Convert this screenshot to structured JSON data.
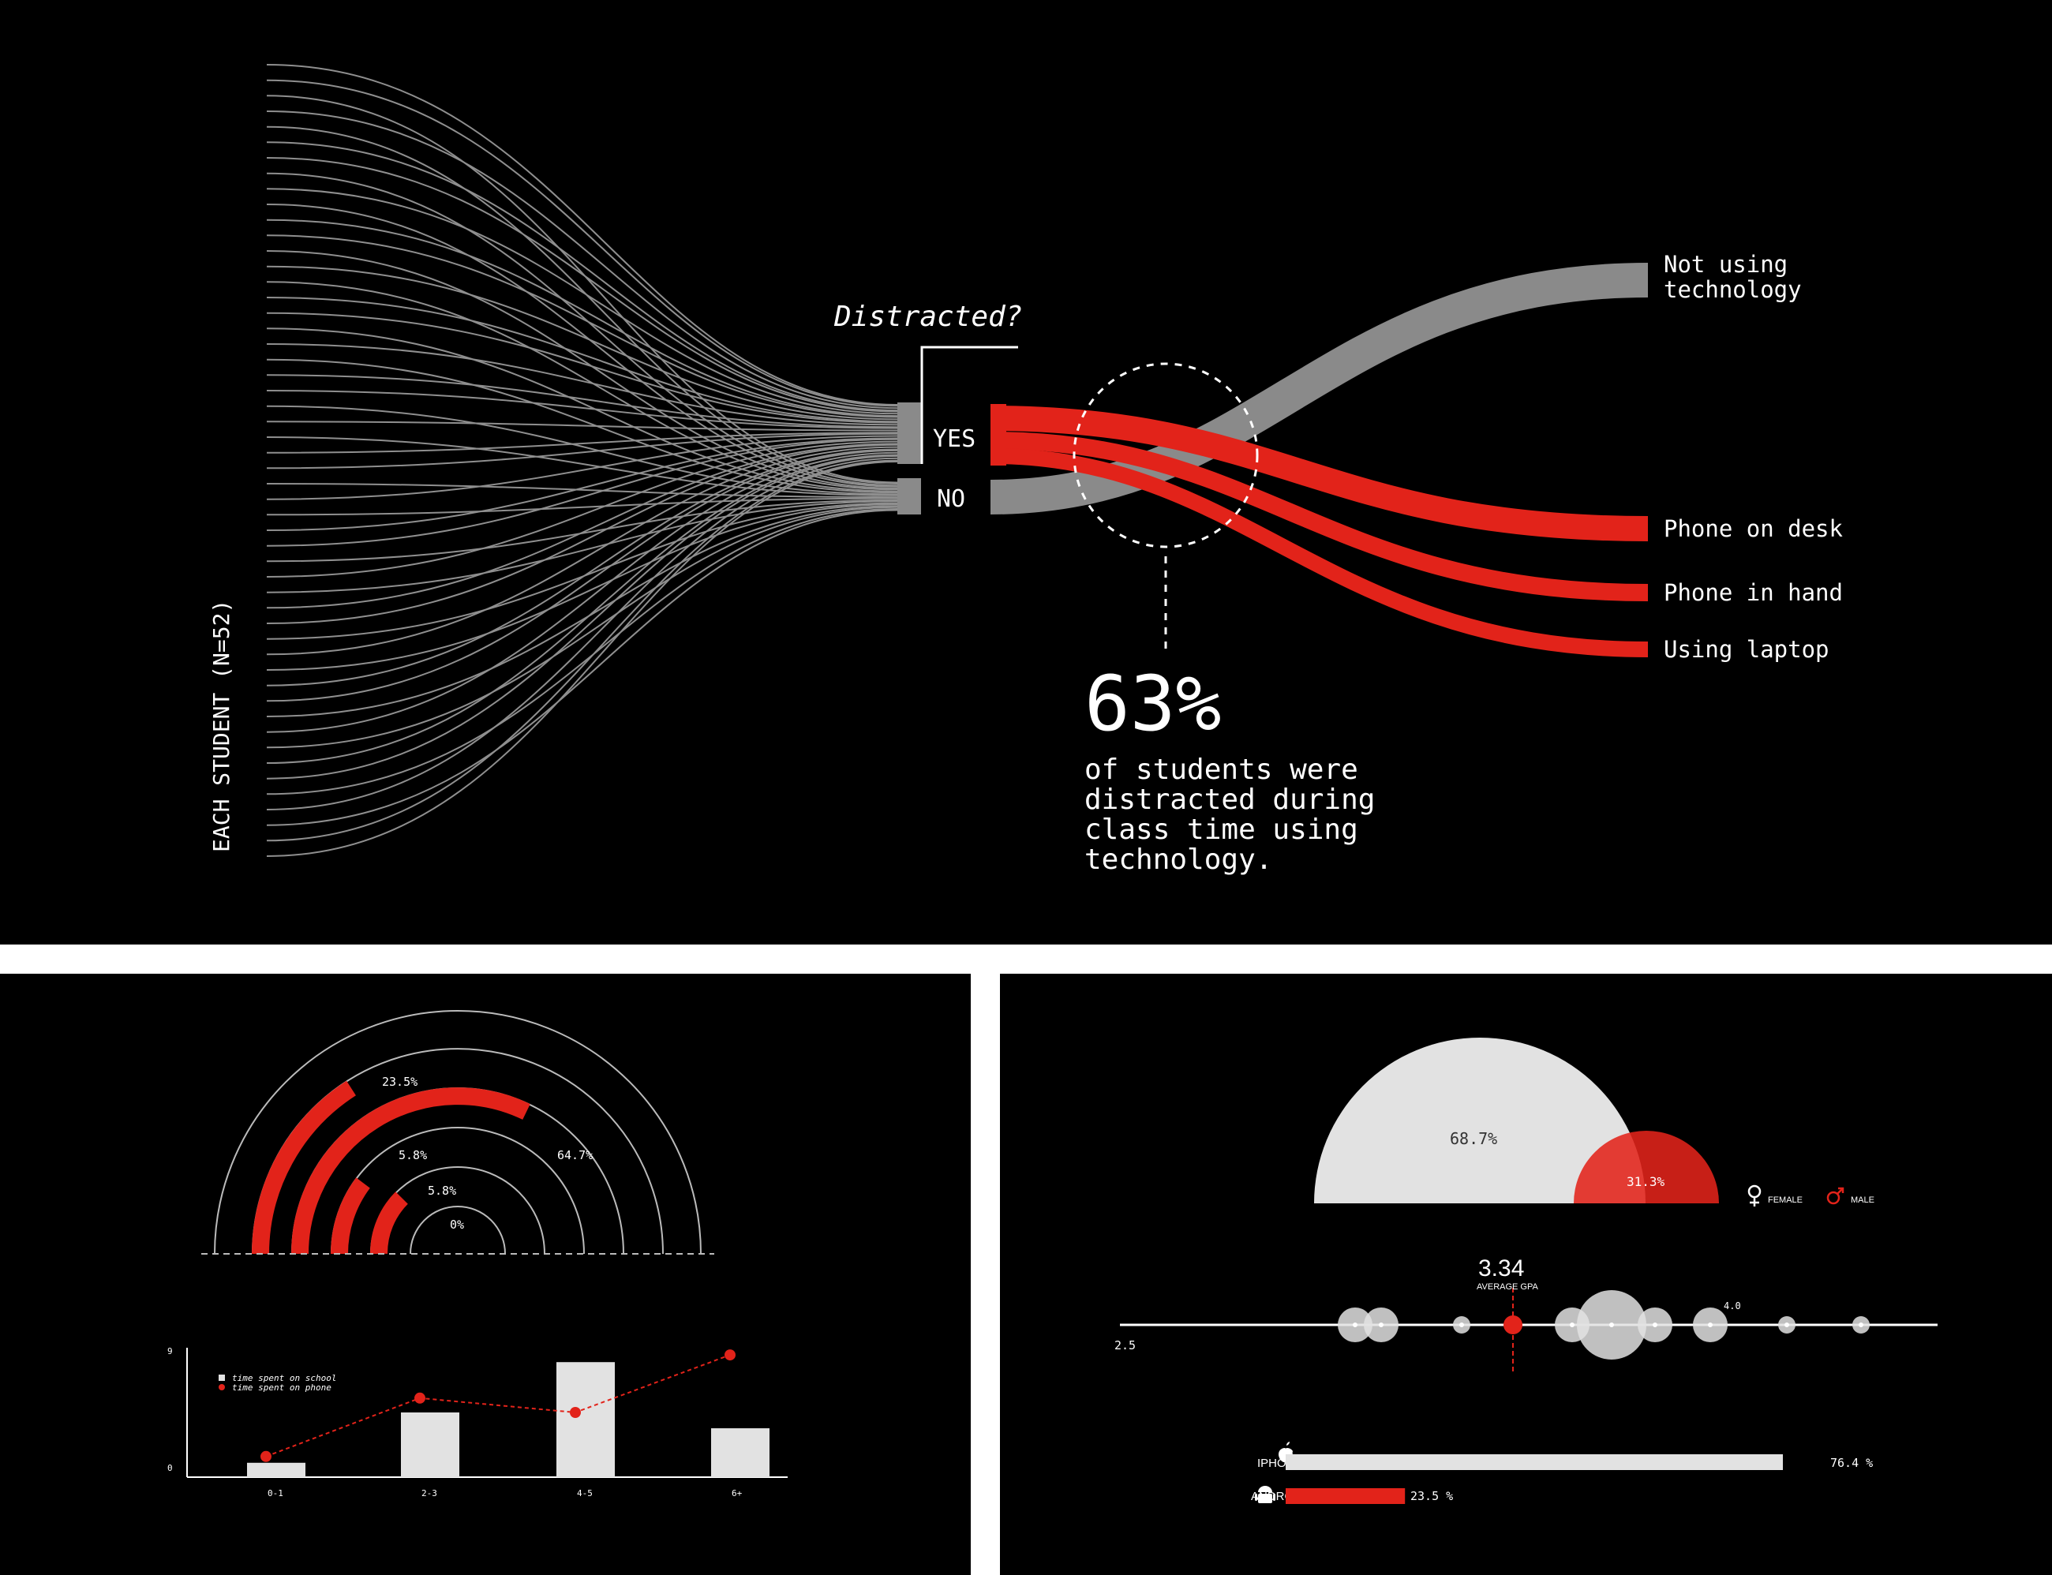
{
  "flow": {
    "left_label": "EACH STUDENT (N=52)",
    "question": "Distracted?",
    "yes_label": "YES",
    "no_label": "NO",
    "outcomes": [
      "Not using",
      "technology",
      "Phone on desk",
      "Phone in hand",
      "Using laptop"
    ],
    "stat_value": "63%",
    "stat_lines": [
      "of students were",
      "distracted during",
      "class time using",
      "technology."
    ]
  },
  "arc": {
    "labels": [
      "23.5%",
      "64.7%",
      "5.8%",
      "5.8%",
      "0%"
    ]
  },
  "bars": {
    "legend": [
      "time spent on school",
      "time spent on phone"
    ],
    "y_ticks": [
      "9",
      "0"
    ]
  },
  "gender": {
    "female_value": "68.7%",
    "male_value": "31.3%",
    "legend_female": "FEMALE",
    "legend_male": "MALE"
  },
  "gpa": {
    "average": "3.34",
    "average_label": "AVERAGE GPA",
    "min_label": "2.5",
    "max_label": "4.0"
  },
  "phones": {
    "iphone_label": "IPHONE",
    "iphone_value": "76.4 %",
    "android_label": "ANDROID",
    "android_value": "23.5 %"
  },
  "colors": {
    "red": "#e2231a",
    "gray": "#8a8a8a",
    "light": "#e2e2e2"
  },
  "chart_data": [
    {
      "type": "sankey",
      "nodes": [
        "Each student",
        "YES",
        "NO",
        "Not using technology",
        "Phone on desk",
        "Phone in hand",
        "Using laptop"
      ],
      "n": 52,
      "distracted_percent": 63
    },
    {
      "type": "radial-bar",
      "categories": [
        "0-1",
        "2-3",
        "4-5",
        "6+"
      ],
      "values": [
        23.5,
        64.7,
        5.8,
        5.8
      ]
    },
    {
      "type": "bar",
      "categories": [
        "0-1",
        "2-3",
        "4-5",
        "6+"
      ],
      "series": [
        {
          "name": "time spent on school",
          "values": [
            1,
            4.5,
            8,
            3.4
          ]
        },
        {
          "name": "time spent on phone",
          "values": [
            1,
            5.5,
            4.5,
            8.5
          ]
        }
      ],
      "ylim": [
        0,
        9
      ]
    },
    {
      "type": "pie",
      "categories": [
        "FEMALE",
        "MALE"
      ],
      "values": [
        68.7,
        31.3
      ]
    },
    {
      "type": "scatter",
      "xlim": [
        2.5,
        4.0
      ],
      "average": 3.34
    },
    {
      "type": "bar",
      "categories": [
        "IPHONE",
        "ANDROID"
      ],
      "values": [
        76.4,
        23.5
      ]
    }
  ]
}
